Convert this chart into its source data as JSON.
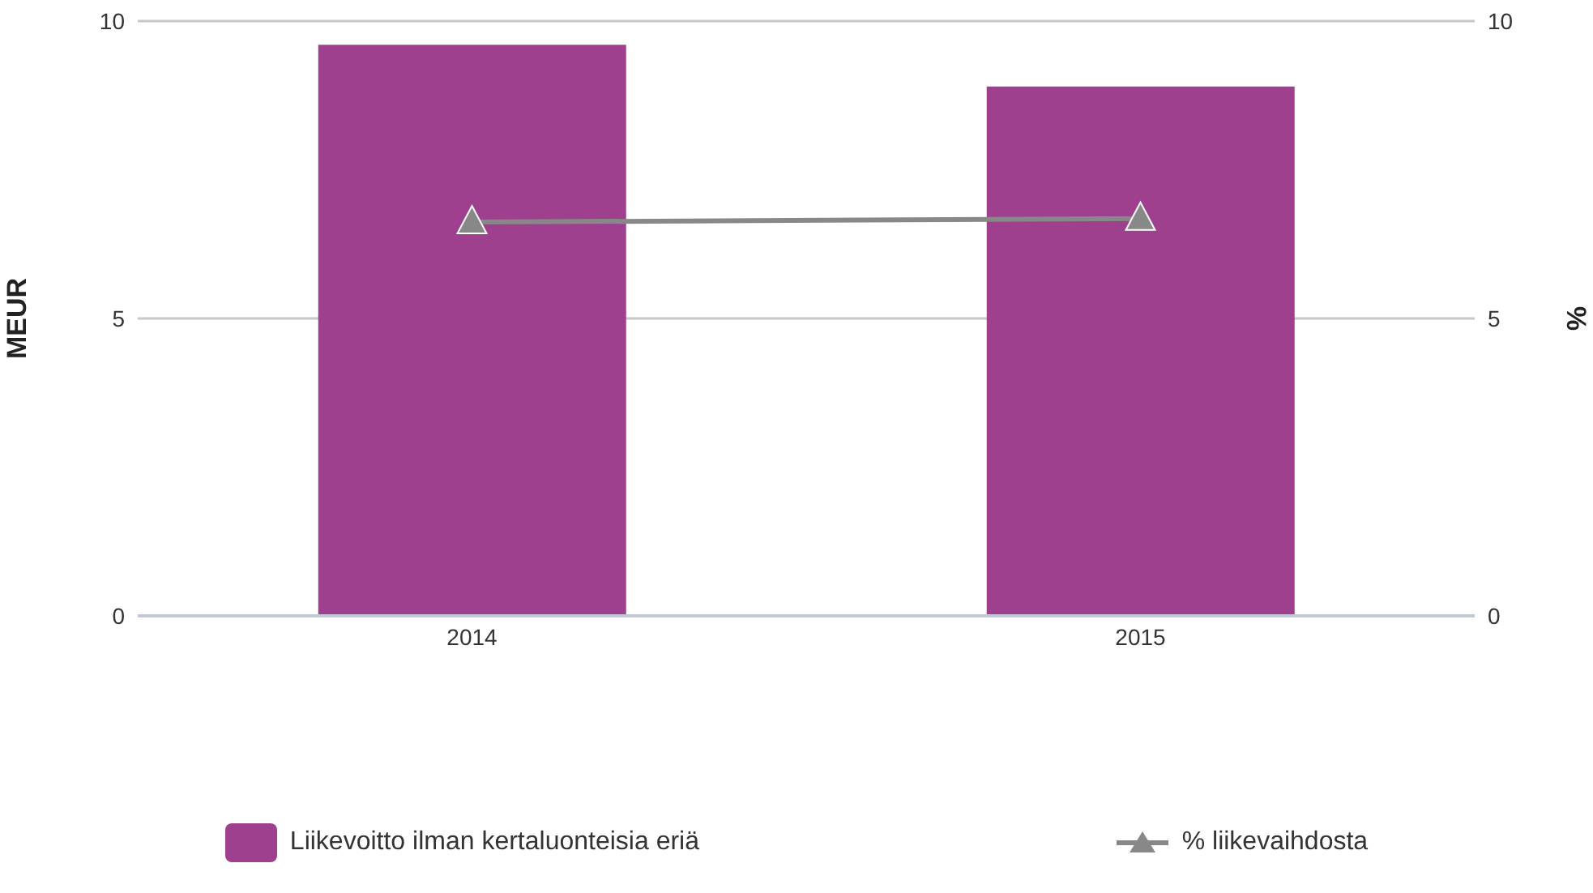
{
  "chart_data": {
    "type": "bar",
    "categories": [
      "2014",
      "2015"
    ],
    "ylabel": "MEUR",
    "y2label": "%",
    "ylim": [
      0,
      10
    ],
    "yticks": [
      0,
      5,
      10
    ],
    "y2lim": [
      0,
      10
    ],
    "y2ticks": [
      0,
      5,
      10
    ],
    "grid": "y",
    "legend": "bottom",
    "marker": "triangle",
    "line_style": "solid",
    "series": [
      {
        "name": "Liikevoitto ilman kertaluonteisia eriä",
        "color": "#9e408e",
        "values": [
          9.6,
          8.9
        ]
      },
      {
        "name": "% liikevaihdosta",
        "type": "line",
        "axis": "y2",
        "color": "#888888",
        "values": [
          6.62,
          6.68
        ]
      }
    ]
  }
}
